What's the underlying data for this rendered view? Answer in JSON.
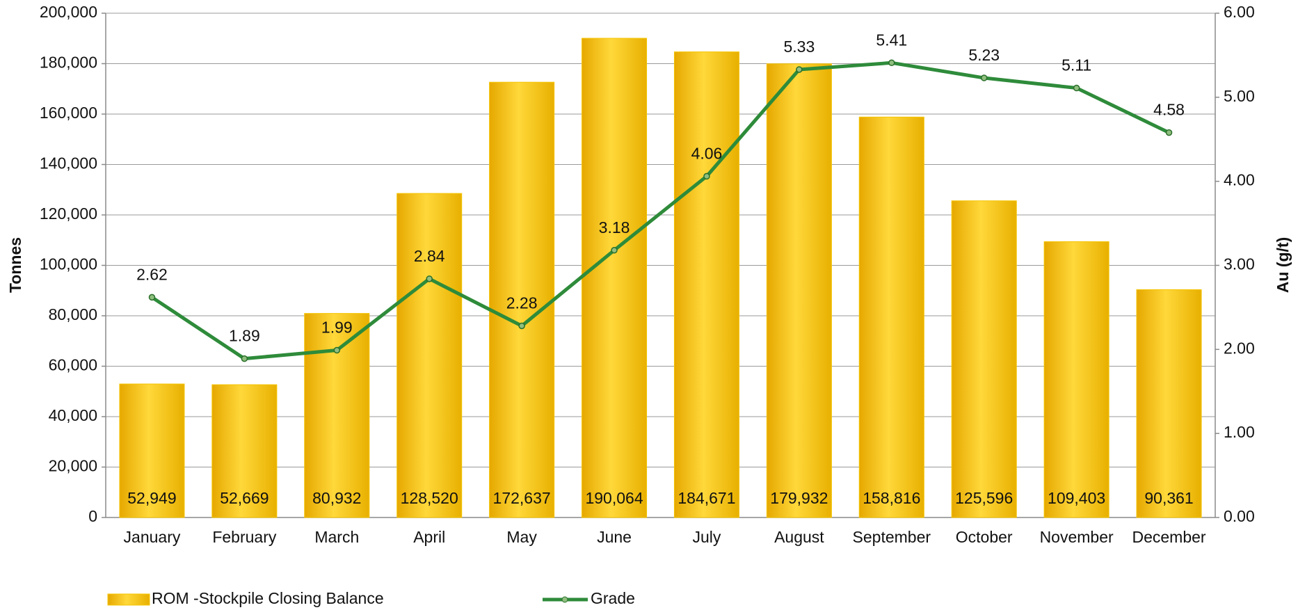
{
  "chart_data": {
    "type": "bar",
    "categories": [
      "January",
      "February",
      "March",
      "April",
      "May",
      "June",
      "July",
      "August",
      "September",
      "October",
      "November",
      "December"
    ],
    "series": [
      {
        "name": "ROM -Stockpile Closing Balance",
        "type": "bar",
        "color": "#f5c400",
        "values": [
          52949,
          52669,
          80932,
          128520,
          172637,
          190064,
          184671,
          179932,
          158816,
          125596,
          109403,
          90361
        ],
        "value_labels": [
          "52,949",
          "52,669",
          "80,932",
          "128,520",
          "172,637",
          "190,064",
          "184,671",
          "179,932",
          "158,816",
          "125,596",
          "109,403",
          "90,361"
        ]
      },
      {
        "name": "Grade",
        "type": "line",
        "axis": "y2",
        "color": "#2e8b3a",
        "values": [
          2.62,
          1.89,
          1.99,
          2.84,
          2.28,
          3.18,
          4.06,
          5.33,
          5.41,
          5.23,
          5.11,
          4.58
        ]
      }
    ],
    "ylabel": "Tonnes",
    "y2label": "Au (g/t)",
    "ylim": [
      0,
      200000
    ],
    "yticks": [
      0,
      {
        "value": 20000,
        "label": "20,000"
      },
      {
        "value": 40000,
        "label": "40,000"
      },
      {
        "value": 60000,
        "label": "60,000"
      },
      {
        "value": 80000,
        "label": "80,000"
      },
      {
        "value": 100000,
        "label": "100,000"
      },
      {
        "value": 120000,
        "label": "120,000"
      },
      {
        "value": 140000,
        "label": "140,000"
      },
      {
        "value": 160000,
        "label": "160,000"
      },
      {
        "value": 180000,
        "label": "180,000"
      },
      {
        "value": 200000,
        "label": "200,000"
      }
    ],
    "y2lim": [
      0,
      6
    ],
    "y2ticks": [
      {
        "value": 0,
        "label": "0.00"
      },
      {
        "value": 1,
        "label": "1.00"
      },
      {
        "value": 2,
        "label": "2.00"
      },
      {
        "value": 3,
        "label": "3.00"
      },
      {
        "value": 4,
        "label": "4.00"
      },
      {
        "value": 5,
        "label": "5.00"
      },
      {
        "value": 6,
        "label": "6.00"
      }
    ],
    "grid": true,
    "legend": "bottom"
  }
}
